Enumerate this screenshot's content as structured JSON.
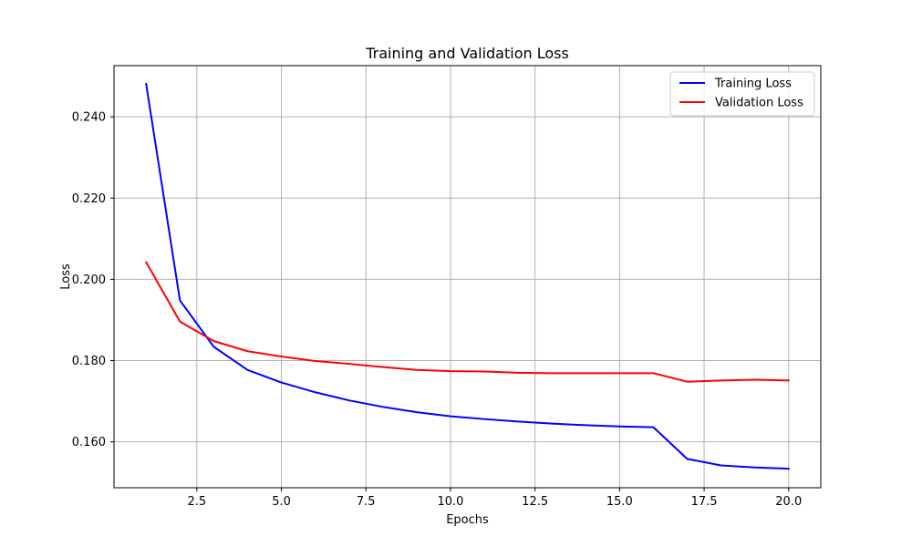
{
  "chart_data": {
    "type": "line",
    "title": "Training and Validation Loss",
    "xlabel": "Epochs",
    "ylabel": "Loss",
    "x": [
      1,
      2,
      3,
      4,
      5,
      6,
      7,
      8,
      9,
      10,
      11,
      12,
      13,
      14,
      15,
      16,
      17,
      18,
      19,
      20
    ],
    "xlim": [
      0.05,
      20.95
    ],
    "ylim": [
      0.1487,
      0.2526
    ],
    "xticks": [
      2.5,
      5.0,
      7.5,
      10.0,
      12.5,
      15.0,
      17.5,
      20.0
    ],
    "xtick_labels": [
      "2.5",
      "5.0",
      "7.5",
      "10.0",
      "12.5",
      "15.0",
      "17.5",
      "20.0"
    ],
    "yticks": [
      0.16,
      0.18,
      0.2,
      0.22,
      0.24
    ],
    "ytick_labels": [
      "0.160",
      "0.180",
      "0.200",
      "0.220",
      "0.240"
    ],
    "grid": true,
    "legend_position": "top-right",
    "series": [
      {
        "name": "Training Loss",
        "color": "#0000ff",
        "values": [
          0.2481,
          0.1948,
          0.1834,
          0.1777,
          0.1746,
          0.1722,
          0.1702,
          0.1686,
          0.1673,
          0.1663,
          0.1656,
          0.165,
          0.1645,
          0.1641,
          0.1638,
          0.1636,
          0.1558,
          0.1542,
          0.1537,
          0.1534
        ]
      },
      {
        "name": "Validation Loss",
        "color": "#ff0000",
        "values": [
          0.2042,
          0.1896,
          0.1848,
          0.1823,
          0.181,
          0.1799,
          0.1792,
          0.1784,
          0.1777,
          0.1774,
          0.1773,
          0.177,
          0.1769,
          0.1769,
          0.1769,
          0.1769,
          0.1748,
          0.1751,
          0.1753,
          0.1751
        ]
      }
    ]
  }
}
